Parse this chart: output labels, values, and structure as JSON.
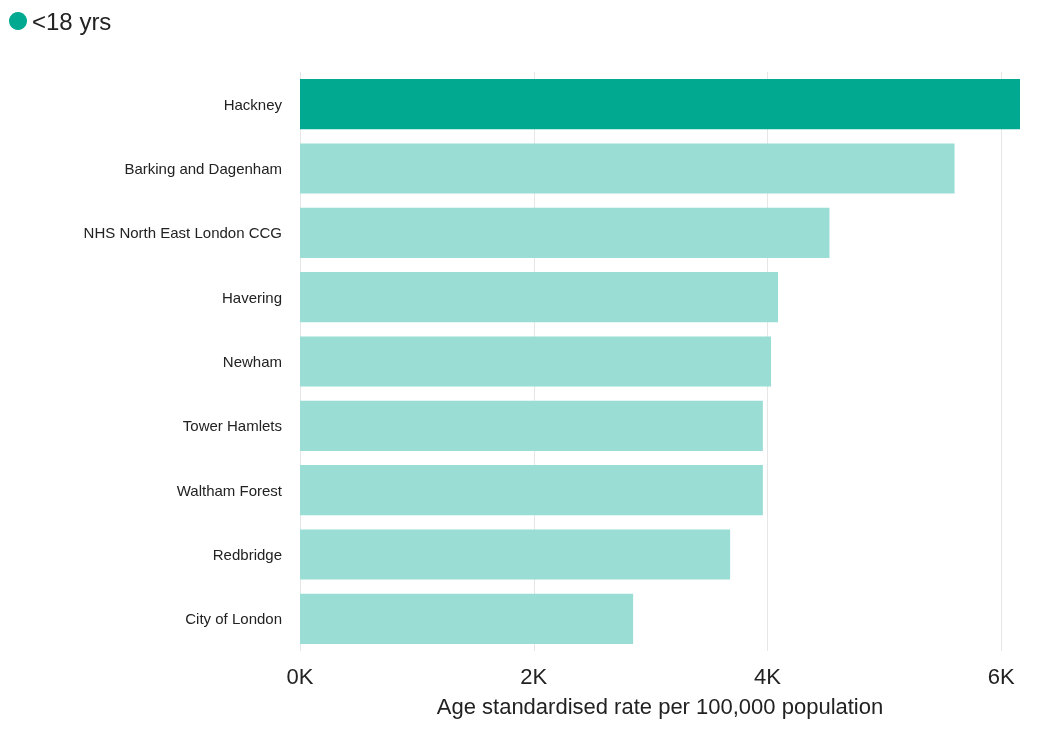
{
  "chart_data": {
    "type": "bar",
    "orientation": "horizontal",
    "xlabel": "Age standardised rate per 100,000 population",
    "categories": [
      "Hackney",
      "Barking and Dagenham",
      "NHS North East London CCG",
      "Havering",
      "Newham",
      "Tower Hamlets",
      "Waltham Forest",
      "Redbridge",
      "City of London"
    ],
    "series": [
      {
        "name": "<18 yrs",
        "color": "#00a98f",
        "colors": [
          "#00a98f",
          "#99ddd4",
          "#99ddd4",
          "#99ddd4",
          "#99ddd4",
          "#99ddd4",
          "#99ddd4",
          "#99ddd4",
          "#99ddd4"
        ],
        "values": [
          6160,
          5600,
          4530,
          4090,
          4030,
          3960,
          3960,
          3680,
          2850
        ]
      }
    ],
    "xlim": [
      0,
      6160
    ],
    "xticks": [
      {
        "value": 0,
        "label": "0K"
      },
      {
        "value": 2000,
        "label": "2K"
      },
      {
        "value": 4000,
        "label": "4K"
      },
      {
        "value": 6000,
        "label": "6K"
      }
    ],
    "grid": "x",
    "legend": "top left"
  }
}
